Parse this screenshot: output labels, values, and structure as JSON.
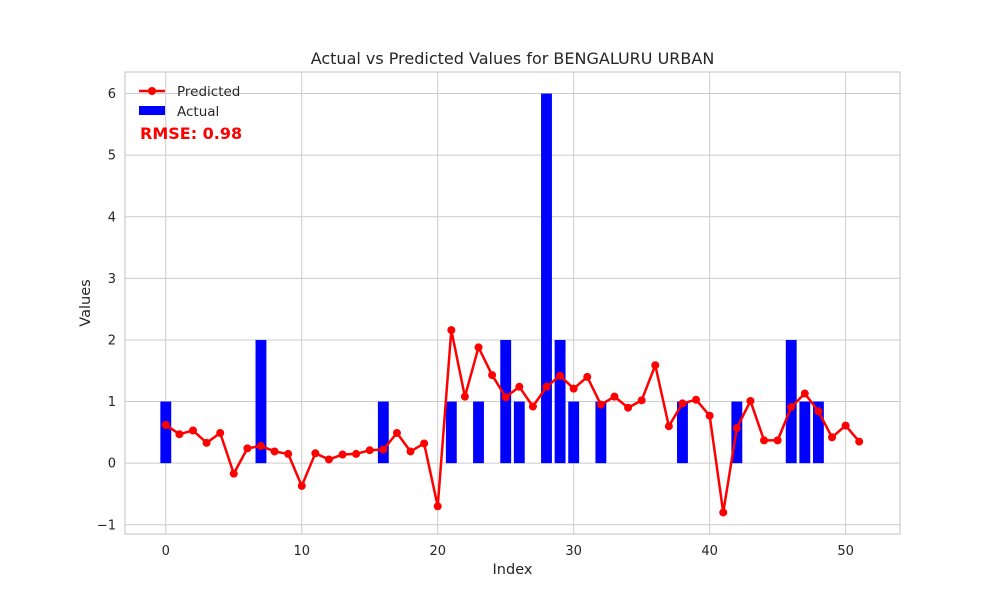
{
  "chart_data": {
    "type": "bar",
    "title": "Actual vs Predicted Values for BENGALURU URBAN",
    "xlabel": "Index",
    "ylabel": "Values",
    "xlim": [
      -3,
      54
    ],
    "ylim": [
      -1.15,
      6.35
    ],
    "x_ticks": [
      0,
      10,
      20,
      30,
      40,
      50
    ],
    "x_tick_labels": [
      "0",
      "10",
      "20",
      "30",
      "40",
      "50"
    ],
    "y_ticks": [
      -1,
      0,
      1,
      2,
      3,
      4,
      5,
      6
    ],
    "y_tick_labels": [
      "−1",
      "0",
      "1",
      "2",
      "3",
      "4",
      "5",
      "6"
    ],
    "grid": true,
    "legend_position": "top-left",
    "annotation": "RMSE: 0.98",
    "annotation_color": "#ff0000",
    "series": [
      {
        "name": "Predicted",
        "type": "line",
        "color": "#ff0000",
        "x": [
          0,
          1,
          2,
          3,
          4,
          5,
          6,
          7,
          8,
          9,
          10,
          11,
          12,
          13,
          14,
          15,
          16,
          17,
          18,
          19,
          20,
          21,
          22,
          23,
          24,
          25,
          26,
          27,
          28,
          29,
          30,
          31,
          32,
          33,
          34,
          35,
          36,
          37,
          38,
          39,
          40,
          41,
          42,
          43,
          44,
          45,
          46,
          47,
          48,
          49,
          50,
          51
        ],
        "values": [
          0.62,
          0.47,
          0.53,
          0.33,
          0.49,
          -0.17,
          0.24,
          0.28,
          0.19,
          0.15,
          -0.37,
          0.16,
          0.06,
          0.14,
          0.15,
          0.21,
          0.22,
          0.49,
          0.19,
          0.32,
          -0.7,
          2.16,
          1.08,
          1.88,
          1.43,
          1.07,
          1.24,
          0.92,
          1.24,
          1.42,
          1.21,
          1.4,
          0.95,
          1.08,
          0.9,
          1.02,
          1.59,
          0.6,
          0.97,
          1.03,
          0.77,
          -0.8,
          0.57,
          1.01,
          0.37,
          0.37,
          0.91,
          1.13,
          0.84,
          0.42,
          0.61,
          0.35
        ]
      },
      {
        "name": "Actual",
        "type": "bar",
        "color": "#0000ff",
        "x": [
          0,
          7,
          16,
          21,
          23,
          25,
          26,
          28,
          29,
          30,
          32,
          38,
          42,
          46,
          47,
          48
        ],
        "values": [
          1,
          2,
          1,
          1,
          1,
          2,
          1,
          6,
          2,
          1,
          1,
          1,
          1,
          2,
          1,
          1
        ]
      }
    ]
  }
}
